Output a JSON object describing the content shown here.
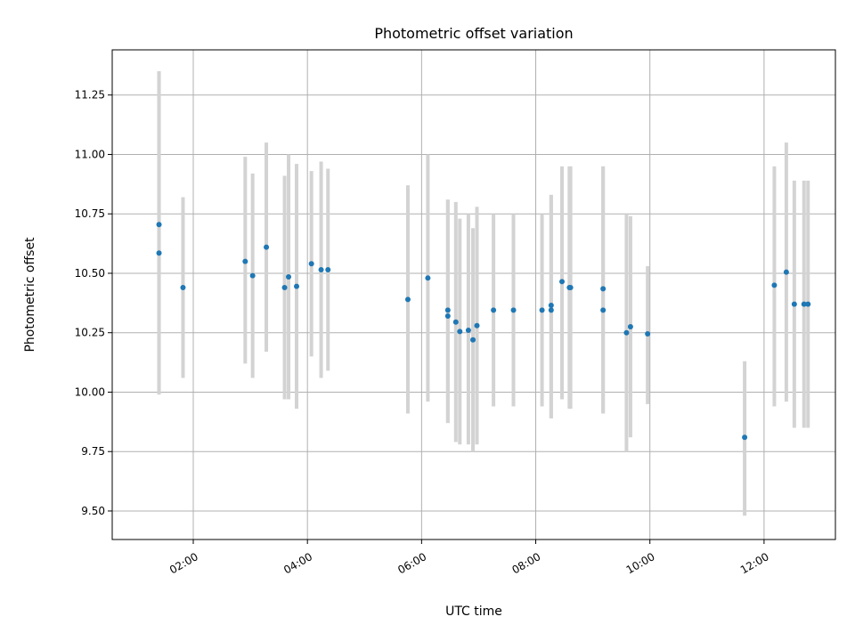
{
  "chart_data": {
    "type": "scatter",
    "title": "Photometric offset variation",
    "xlabel": "UTC time",
    "ylabel": "Photometric offset",
    "x_unit": "hours UTC",
    "xlim": [
      0.58,
      13.25
    ],
    "ylim": [
      9.38,
      11.44
    ],
    "grid": true,
    "x_ticks": [
      {
        "value": 2,
        "label": "02:00"
      },
      {
        "value": 4,
        "label": "04:00"
      },
      {
        "value": 6,
        "label": "06:00"
      },
      {
        "value": 8,
        "label": "08:00"
      },
      {
        "value": 10,
        "label": "10:00"
      },
      {
        "value": 12,
        "label": "12:00"
      }
    ],
    "y_ticks": [
      {
        "value": 9.5,
        "label": "9.50"
      },
      {
        "value": 9.75,
        "label": "9.75"
      },
      {
        "value": 10.0,
        "label": "10.00"
      },
      {
        "value": 10.25,
        "label": "10.25"
      },
      {
        "value": 10.5,
        "label": "10.50"
      },
      {
        "value": 10.75,
        "label": "10.75"
      },
      {
        "value": 11.0,
        "label": "11.00"
      },
      {
        "value": 11.25,
        "label": "11.25"
      }
    ],
    "marker_color": "#1f77b4",
    "errorbar_color": "#d3d3d3",
    "points": [
      {
        "x": 1.4,
        "y": 10.705,
        "err_low": 9.99,
        "err_high": 11.35
      },
      {
        "x": 1.4,
        "y": 10.585,
        "err_low": 9.99,
        "err_high": 11.35
      },
      {
        "x": 1.82,
        "y": 10.44,
        "err_low": 10.06,
        "err_high": 10.82
      },
      {
        "x": 2.91,
        "y": 10.55,
        "err_low": 10.12,
        "err_high": 10.99
      },
      {
        "x": 3.04,
        "y": 10.49,
        "err_low": 10.06,
        "err_high": 10.92
      },
      {
        "x": 3.28,
        "y": 10.61,
        "err_low": 10.17,
        "err_high": 11.05
      },
      {
        "x": 3.6,
        "y": 10.44,
        "err_low": 9.97,
        "err_high": 10.91
      },
      {
        "x": 3.67,
        "y": 10.485,
        "err_low": 9.97,
        "err_high": 11.0
      },
      {
        "x": 3.81,
        "y": 10.445,
        "err_low": 9.93,
        "err_high": 10.96
      },
      {
        "x": 4.07,
        "y": 10.54,
        "err_low": 10.15,
        "err_high": 10.93
      },
      {
        "x": 4.24,
        "y": 10.515,
        "err_low": 10.06,
        "err_high": 10.97
      },
      {
        "x": 4.36,
        "y": 10.515,
        "err_low": 10.09,
        "err_high": 10.94
      },
      {
        "x": 5.76,
        "y": 10.39,
        "err_low": 9.91,
        "err_high": 10.87
      },
      {
        "x": 6.11,
        "y": 10.48,
        "err_low": 9.96,
        "err_high": 11.0
      },
      {
        "x": 6.46,
        "y": 10.345,
        "err_low": 9.87,
        "err_high": 10.81
      },
      {
        "x": 6.46,
        "y": 10.32,
        "err_low": 9.87,
        "err_high": 10.81
      },
      {
        "x": 6.6,
        "y": 10.295,
        "err_low": 9.79,
        "err_high": 10.8
      },
      {
        "x": 6.67,
        "y": 10.255,
        "err_low": 9.78,
        "err_high": 10.73
      },
      {
        "x": 6.82,
        "y": 10.26,
        "err_low": 9.78,
        "err_high": 10.75
      },
      {
        "x": 6.9,
        "y": 10.22,
        "err_low": 9.75,
        "err_high": 10.69
      },
      {
        "x": 6.97,
        "y": 10.28,
        "err_low": 9.78,
        "err_high": 10.78
      },
      {
        "x": 7.26,
        "y": 10.345,
        "err_low": 9.94,
        "err_high": 10.75
      },
      {
        "x": 7.61,
        "y": 10.345,
        "err_low": 9.94,
        "err_high": 10.75
      },
      {
        "x": 8.11,
        "y": 10.345,
        "err_low": 9.94,
        "err_high": 10.75
      },
      {
        "x": 8.27,
        "y": 10.345,
        "err_low": 9.89,
        "err_high": 10.83
      },
      {
        "x": 8.27,
        "y": 10.365,
        "err_low": 9.89,
        "err_high": 10.83
      },
      {
        "x": 8.46,
        "y": 10.465,
        "err_low": 9.97,
        "err_high": 10.95
      },
      {
        "x": 8.59,
        "y": 10.44,
        "err_low": 9.93,
        "err_high": 10.95
      },
      {
        "x": 8.61,
        "y": 10.44,
        "err_low": 9.93,
        "err_high": 10.95
      },
      {
        "x": 9.18,
        "y": 10.435,
        "err_low": 9.91,
        "err_high": 10.95
      },
      {
        "x": 9.18,
        "y": 10.345,
        "err_low": 9.91,
        "err_high": 10.95
      },
      {
        "x": 9.59,
        "y": 10.25,
        "err_low": 9.75,
        "err_high": 10.75
      },
      {
        "x": 9.66,
        "y": 10.275,
        "err_low": 9.81,
        "err_high": 10.74
      },
      {
        "x": 9.96,
        "y": 10.245,
        "err_low": 9.95,
        "err_high": 10.53
      },
      {
        "x": 11.66,
        "y": 9.81,
        "err_low": 9.48,
        "err_high": 10.13
      },
      {
        "x": 12.18,
        "y": 10.45,
        "err_low": 9.94,
        "err_high": 10.95
      },
      {
        "x": 12.39,
        "y": 10.505,
        "err_low": 9.96,
        "err_high": 11.05
      },
      {
        "x": 12.53,
        "y": 10.37,
        "err_low": 9.85,
        "err_high": 10.89
      },
      {
        "x": 12.7,
        "y": 10.37,
        "err_low": 9.85,
        "err_high": 10.89
      },
      {
        "x": 12.77,
        "y": 10.37,
        "err_low": 9.85,
        "err_high": 10.89
      }
    ]
  }
}
